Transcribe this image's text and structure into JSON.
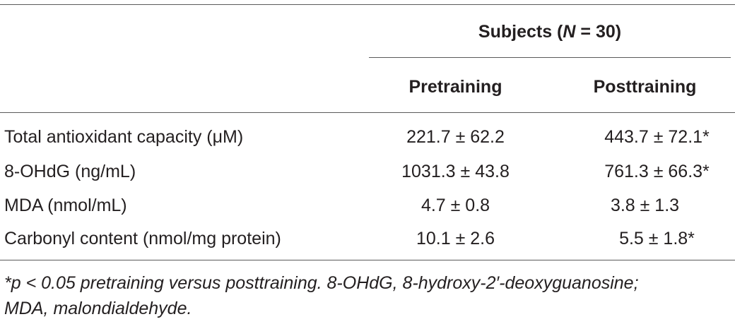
{
  "table": {
    "group_header": {
      "prefix": "Subjects (",
      "n_symbol": "N",
      "suffix": " = 30)"
    },
    "columns": [
      "Pretraining",
      "Posttraining"
    ],
    "rows": [
      {
        "label": "Total antioxidant capacity (μM)",
        "pre": "221.7 ± 62.2",
        "post": "443.7 ± 72.1*"
      },
      {
        "label": "8-OHdG (ng/mL)",
        "pre": "1031.3 ± 43.8",
        "post": "761.3 ± 66.3*"
      },
      {
        "label": "MDA (nmol/mL)",
        "pre": "4.7 ± 0.8",
        "post": "3.8 ± 1.3"
      },
      {
        "label": "Carbonyl content (nmol/mg protein)",
        "pre": "10.1 ± 2.6",
        "post": "5.5 ± 1.8*"
      }
    ]
  },
  "footnote": {
    "line1": "*p < 0.05 pretraining versus posttraining. 8-OHdG, 8-hydroxy-2′-deoxyguanosine;",
    "line2": "MDA, malondialdehyde."
  }
}
